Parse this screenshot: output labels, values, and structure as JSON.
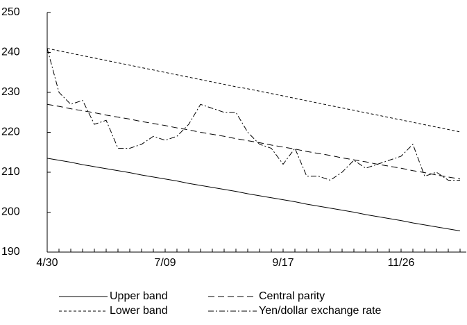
{
  "chart_data": {
    "type": "line",
    "categories": [
      "4/30",
      null,
      null,
      null,
      null,
      null,
      null,
      null,
      null,
      null,
      "7/09",
      null,
      null,
      null,
      null,
      null,
      null,
      null,
      null,
      null,
      "9/17",
      null,
      null,
      null,
      null,
      null,
      null,
      null,
      null,
      null,
      "11/26",
      null,
      null,
      null,
      null,
      null
    ],
    "series": [
      {
        "name": "Upper band",
        "color": "#000000",
        "dash": "none",
        "values": [
          213.5,
          213.0,
          212.5,
          211.9,
          211.4,
          210.9,
          210.4,
          209.9,
          209.3,
          208.8,
          208.3,
          207.8,
          207.2,
          206.7,
          206.2,
          205.7,
          205.2,
          204.6,
          204.1,
          203.6,
          203.1,
          202.6,
          202.0,
          201.5,
          201.0,
          200.5,
          200.0,
          199.4,
          198.9,
          198.4,
          197.9,
          197.3,
          196.8,
          196.3,
          195.8,
          195.3
        ]
      },
      {
        "name": "Central parity",
        "color": "#000000",
        "dash": "9,5",
        "values": [
          227.0,
          226.5,
          225.9,
          225.4,
          224.9,
          224.3,
          223.8,
          223.3,
          222.7,
          222.2,
          221.7,
          221.1,
          220.6,
          220.0,
          219.5,
          219.0,
          218.4,
          217.9,
          217.4,
          216.8,
          216.3,
          215.8,
          215.2,
          214.7,
          214.2,
          213.6,
          213.1,
          212.6,
          212.0,
          211.5,
          211.0,
          210.4,
          209.9,
          209.3,
          208.8,
          208.3
        ]
      },
      {
        "name": "Lower band",
        "color": "#000000",
        "dash": "4,3",
        "values": [
          241.0,
          240.4,
          239.8,
          239.2,
          238.6,
          238.0,
          237.4,
          236.8,
          236.2,
          235.6,
          235.0,
          234.4,
          233.8,
          233.2,
          232.6,
          232.0,
          231.4,
          230.9,
          230.3,
          229.7,
          229.1,
          228.5,
          227.9,
          227.3,
          226.7,
          226.1,
          225.5,
          224.9,
          224.3,
          223.7,
          223.1,
          222.5,
          221.9,
          221.3,
          220.7,
          220.1
        ]
      },
      {
        "name": "Yen/dollar exchange rate",
        "color": "#000000",
        "dash": "8,3,2,3",
        "values": [
          241,
          230,
          227,
          228,
          222,
          223,
          216,
          216,
          217,
          219,
          218,
          219,
          222,
          227,
          226,
          225,
          225,
          220,
          217,
          216,
          212,
          216,
          209,
          209,
          208,
          210,
          213,
          211,
          212,
          213,
          214,
          217,
          209,
          210,
          208,
          208
        ]
      }
    ],
    "ylim": [
      190,
      250
    ],
    "yticks": [
      190,
      200,
      210,
      220,
      230,
      240,
      250
    ],
    "grid": false
  }
}
